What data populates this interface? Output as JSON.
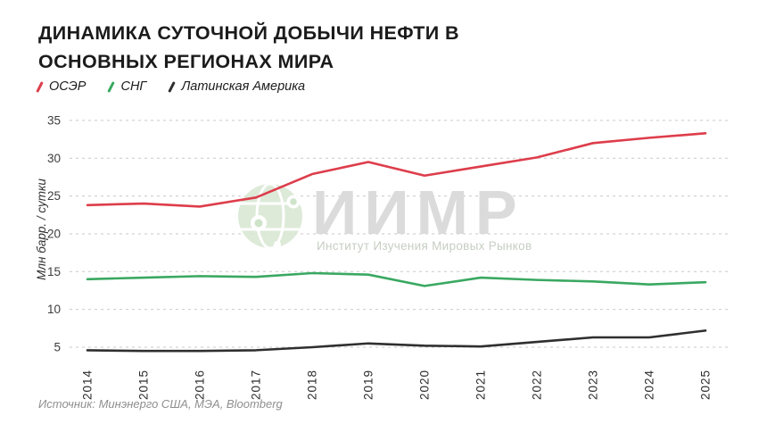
{
  "header": {
    "title": "ДИНАМИКА СУТОЧНОЙ ДОБЫЧИ НЕФТИ В ОСНОВНЫХ РЕГИОНАХ МИРА"
  },
  "legend": {
    "items": [
      {
        "label": "ОСЭР",
        "color": "#dd3d4b"
      },
      {
        "label": "СНГ",
        "color": "#3aa861"
      },
      {
        "label": "Латинская Америка",
        "color": "#2f2f2f"
      }
    ]
  },
  "watermark": {
    "logo": "globe-icon",
    "logo_color": "#d9e8d4",
    "title": "ИИМР",
    "subtitle": "Институт Изучения Мировых Рынков"
  },
  "source": {
    "text": "Источник: Минэнерго США, МЭА, Bloomberg"
  },
  "chart_data": {
    "type": "line",
    "title": "ДИНАМИКА СУТОЧНОЙ ДОБЫЧИ НЕФТИ В ОСНОВНЫХ РЕГИОНАХ МИРА",
    "xlabel": "",
    "ylabel": "Млн барр. / сутки",
    "categories": [
      "2014",
      "2015",
      "2016",
      "2017",
      "2018",
      "2019",
      "2020",
      "2021",
      "2022",
      "2023",
      "2024",
      "2025"
    ],
    "series": [
      {
        "name": "ОСЭР",
        "color": "#dd3d4b",
        "values": [
          23.8,
          24.0,
          23.6,
          24.8,
          27.9,
          29.5,
          27.7,
          28.9,
          30.1,
          32.0,
          32.7,
          33.3
        ]
      },
      {
        "name": "СНГ",
        "color": "#3aa861",
        "values": [
          14.0,
          14.2,
          14.4,
          14.3,
          14.8,
          14.6,
          13.1,
          14.2,
          13.9,
          13.7,
          13.3,
          13.6
        ]
      },
      {
        "name": "Латинская Америка",
        "color": "#2f2f2f",
        "values": [
          4.6,
          4.5,
          4.5,
          4.6,
          5.0,
          5.5,
          5.2,
          5.1,
          5.7,
          6.3,
          6.3,
          7.2
        ]
      }
    ],
    "yticks": [
      5,
      10,
      15,
      20,
      25,
      30,
      35
    ],
    "ylim": [
      4,
      36
    ],
    "grid": "horizontal-dashed",
    "legend_position": "top-left"
  }
}
